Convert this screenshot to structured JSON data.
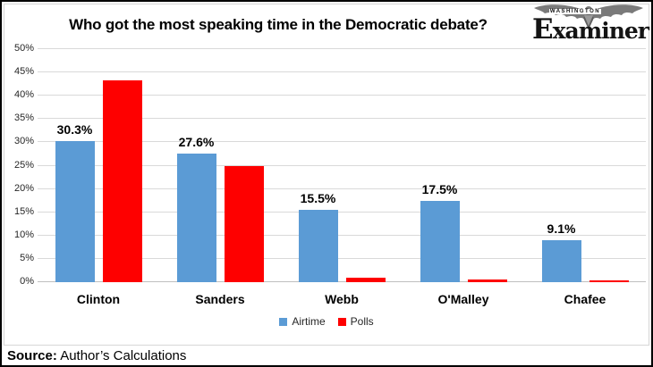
{
  "title": "Who got the most speaking time in the Democratic debate?",
  "logo": {
    "top_text": "WASHINGTON",
    "name": "Examiner",
    "eagle": "eagle-emblem"
  },
  "source": {
    "label": "Source:",
    "text": " Author’s Calculations"
  },
  "colors": {
    "airtime": "#5b9bd5",
    "polls": "#fe0000",
    "gridline": "#d9d9d9",
    "axis": "#bfbfbf"
  },
  "chart_data": {
    "type": "bar",
    "title": "Who got the most speaking time in the Democratic debate?",
    "categories": [
      "Clinton",
      "Sanders",
      "Webb",
      "O'Malley",
      "Chafee"
    ],
    "series": [
      {
        "name": "Airtime",
        "color": "#5b9bd5",
        "values": [
          30.3,
          27.6,
          15.5,
          17.5,
          9.1
        ],
        "data_labels": [
          "30.3%",
          "27.6%",
          "15.5%",
          "17.5%",
          "9.1%"
        ]
      },
      {
        "name": "Polls",
        "color": "#fe0000",
        "values": [
          43.3,
          25.0,
          0.9,
          0.5,
          0.4
        ],
        "data_labels": []
      }
    ],
    "xlabel": "",
    "ylabel": "",
    "ylim": [
      0,
      50
    ],
    "ytick_step": 5,
    "ytick_labels": [
      "0%",
      "5%",
      "10%",
      "15%",
      "20%",
      "25%",
      "30%",
      "35%",
      "40%",
      "45%",
      "50%"
    ],
    "grid": true,
    "legend_position": "bottom",
    "legend": [
      "Airtime",
      "Polls"
    ]
  }
}
